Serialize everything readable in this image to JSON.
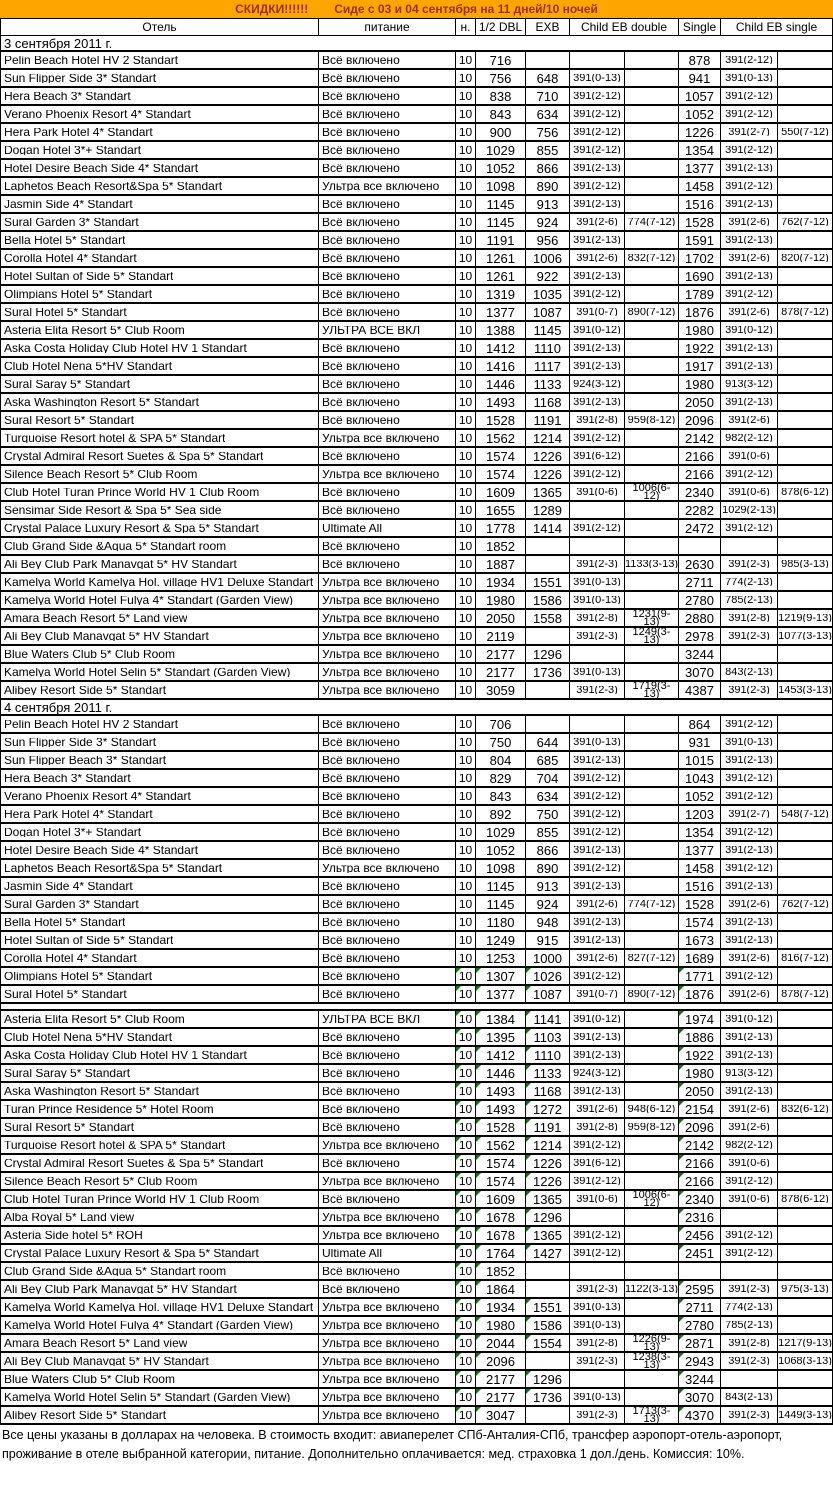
{
  "banner": {
    "discount": "СКИДКИ!!!!!!",
    "subtitle": "Сиде с 03 и 04 сентября на 11 дней/10 ночей"
  },
  "colors": {
    "banner_bg": "#FFA500",
    "banner_text": "#993300",
    "mark_green": "#007F00"
  },
  "columns": {
    "hotel": "Отель",
    "meal": "питание",
    "nights": "н.",
    "half_dbl": "1/2 DBL",
    "exb": "EXB",
    "child_eb_double": "Child EB double",
    "single": "Single",
    "child_eb_single": "Child EB single"
  },
  "sections": [
    {
      "title": "3 сентября 2011 г.",
      "rows": [
        [
          "Pelin Beach Hotel HV 2 Standart",
          "Всё включено",
          "10",
          "716",
          "",
          "",
          "",
          "878",
          "391(2-12)",
          ""
        ],
        [
          "Sun Flipper Side 3* Standart",
          "Всё включено",
          "10",
          "756",
          "648",
          "391(0-13)",
          "",
          "941",
          "391(0-13)",
          ""
        ],
        [
          "Hera Beach 3* Standart",
          "Всё включено",
          "10",
          "838",
          "710",
          "391(2-12)",
          "",
          "1057",
          "391(2-12)",
          ""
        ],
        [
          "Verano Phoenix Resort 4* Standart",
          "Всё включено",
          "10",
          "843",
          "634",
          "391(2-12)",
          "",
          "1052",
          "391(2-12)",
          ""
        ],
        [
          "Hera Park Hotel 4* Standart",
          "Всё включено",
          "10",
          "900",
          "756",
          "391(2-12)",
          "",
          "1226",
          "391(2-7)",
          "550(7-12)"
        ],
        [
          "Dogan Hotel 3*+ Standart",
          "Всё включено",
          "10",
          "1029",
          "855",
          "391(2-12)",
          "",
          "1354",
          "391(2-12)",
          ""
        ],
        [
          "Hotel Desire Beach Side 4* Standart",
          "Всё включено",
          "10",
          "1052",
          "866",
          "391(2-13)",
          "",
          "1377",
          "391(2-13)",
          ""
        ],
        [
          "Laphetos Beach Resort&Spa 5* Standart",
          "Ультра все включено",
          "10",
          "1098",
          "890",
          "391(2-12)",
          "",
          "1458",
          "391(2-12)",
          ""
        ],
        [
          "Jasmin Side 4* Standart",
          "Всё включено",
          "10",
          "1145",
          "913",
          "391(2-13)",
          "",
          "1516",
          "391(2-13)",
          ""
        ],
        [
          "Sural Garden 3* Standart",
          "Всё включено",
          "10",
          "1145",
          "924",
          "391(2-6)",
          "774(7-12)",
          "1528",
          "391(2-6)",
          "762(7-12)"
        ],
        [
          "Bella Hotel 5* Standart",
          "Всё включено",
          "10",
          "1191",
          "956",
          "391(2-13)",
          "",
          "1591",
          "391(2-13)",
          ""
        ],
        [
          "Corolla Hotel 4* Standart",
          "Всё включено",
          "10",
          "1261",
          "1006",
          "391(2-6)",
          "832(7-12)",
          "1702",
          "391(2-6)",
          "820(7-12)"
        ],
        [
          "Hotel Sultan of Side 5* Standart",
          "Всё включено",
          "10",
          "1261",
          "922",
          "391(2-13)",
          "",
          "1690",
          "391(2-13)",
          ""
        ],
        [
          "Olimpians Hotel 5* Standart",
          "Всё включено",
          "10",
          "1319",
          "1035",
          "391(2-12)",
          "",
          "1789",
          "391(2-12)",
          ""
        ],
        [
          "Sural Hotel 5* Standart",
          "Всё включено",
          "10",
          "1377",
          "1087",
          "391(0-7)",
          "890(7-12)",
          "1876",
          "391(2-6)",
          "878(7-12)"
        ],
        [
          "Asteria Elita Resort 5* Club Room",
          "УЛЬТРА ВСЕ ВКЛ",
          "10",
          "1388",
          "1145",
          "391(0-12)",
          "",
          "1980",
          "391(0-12)",
          ""
        ],
        [
          "Aska Costa Holiday Club Hotel HV 1 Standart",
          "Всё включено",
          "10",
          "1412",
          "1110",
          "391(2-13)",
          "",
          "1922",
          "391(2-13)",
          ""
        ],
        [
          "Club Hotel Nena 5*HV Standart",
          "Всё включено",
          "10",
          "1416",
          "1117",
          "391(2-13)",
          "",
          "1917",
          "391(2-13)",
          ""
        ],
        [
          "Sural Saray 5* Standart",
          "Всё включено",
          "10",
          "1446",
          "1133",
          "924(3-12)",
          "",
          "1980",
          "913(3-12)",
          ""
        ],
        [
          "Aska Washington Resort  5* Standart",
          "Всё включено",
          "10",
          "1493",
          "1168",
          "391(2-13)",
          "",
          "2050",
          "391(2-13)",
          ""
        ],
        [
          "Sural Resort 5* Standart",
          "Всё включено",
          "10",
          "1528",
          "1191",
          "391(2-8)",
          "959(8-12)",
          "2096",
          "391(2-6)",
          ""
        ],
        [
          "Turquoise Resort hotel & SPA 5* Standart",
          "Ультра все включено",
          "10",
          "1562",
          "1214",
          "391(2-12)",
          "",
          "2142",
          "982(2-12)",
          ""
        ],
        [
          "Crystal  Admiral Resort Suetes & Spa 5* Standart",
          "Всё включено",
          "10",
          "1574",
          "1226",
          "391(6-12)",
          "",
          "2166",
          "391(0-6)",
          ""
        ],
        [
          "Silence Beach Resort 5* Club Room",
          "Ультра все включено",
          "10",
          "1574",
          "1226",
          "391(2-12)",
          "",
          "2166",
          "391(2-12)",
          ""
        ],
        [
          "Club Hotel Turan Prince World HV 1 Club Room",
          "Всё включено",
          "10",
          "1609",
          "1365",
          "391(0-6)",
          "1006(6-12)",
          "2340",
          "391(0-6)",
          "878(6-12)"
        ],
        [
          "Sensimar Side Resort & Spa 5* Sea side",
          "Всё включено",
          "10",
          "1655",
          "1289",
          "",
          "",
          "2282",
          "1029(2-13)",
          ""
        ],
        [
          "Crystal Palace Luxury Resort & Spa 5* Standart",
          "Ultimate All",
          "10",
          "1778",
          "1414",
          "391(2-12)",
          "",
          "2472",
          "391(2-12)",
          ""
        ],
        [
          "Club Grand Side &Aqua 5* Standart room",
          "Всё включено",
          "10",
          "1852",
          "",
          "",
          "",
          "",
          "",
          ""
        ],
        [
          "Ali Bey Club Park Manavgat 5* HV Standart",
          "Всё включено",
          "10",
          "1887",
          "",
          "391(2-3)",
          "1133(3-13)",
          "2630",
          "391(2-3)",
          "985(3-13)"
        ],
        [
          "Kamelya World Kamelya Hol. village HV1 Deluxe Standart",
          "Ультра все включено",
          "10",
          "1934",
          "1551",
          "391(0-13)",
          "",
          "2711",
          "774(2-13)",
          ""
        ],
        [
          "Kamelya World Hotel Fulya 4* Standart (Garden View)",
          "Ультра все включено",
          "10",
          "1980",
          "1586",
          "391(0-13)",
          "",
          "2780",
          "785(2-13)",
          ""
        ],
        [
          "Amara Beach Resort 5* Land view",
          "Ультра все включено",
          "10",
          "2050",
          "1558",
          "391(2-8)",
          "1231(9-13)",
          "2880",
          "391(2-8)",
          "1219(9-13)"
        ],
        [
          "Ali Bey Club Manavgat 5* HV Standart",
          "Ультра все включено",
          "10",
          "2119",
          "",
          "391(2-3)",
          "1249(3-13)",
          "2978",
          "391(2-3)",
          "1077(3-13)"
        ],
        [
          "Blue Waters Club 5* Club Room",
          "Ультра все включено",
          "10",
          "2177",
          "1296",
          "",
          "",
          "3244",
          "",
          ""
        ],
        [
          "Kamelya World Hotel Selin 5* Standart (Garden View)",
          "Ультра все включено",
          "10",
          "2177",
          "1736",
          "391(0-13)",
          "",
          "3070",
          "843(2-13)",
          ""
        ],
        [
          "Alibey Resort Side 5* Standart",
          "Ультра все включено",
          "10",
          "3059",
          "",
          "391(2-3)",
          "1719(3-13)",
          "4387",
          "391(2-3)",
          "1453(3-13)"
        ]
      ]
    },
    {
      "title": "4 сентября 2011 г.",
      "rows": [
        [
          "Pelin Beach Hotel HV 2 Standart",
          "Всё включено",
          "10",
          "706",
          "",
          "",
          "",
          "864",
          "391(2-12)",
          ""
        ],
        [
          "Sun Flipper Side 3* Standart",
          "Всё включено",
          "10",
          "750",
          "644",
          "391(0-13)",
          "",
          "931",
          "391(0-13)",
          ""
        ],
        [
          "Sun Flipper Beach 3*  Standart",
          "Всё включено",
          "10",
          "804",
          "685",
          "391(2-13)",
          "",
          "1015",
          "391(2-13)",
          ""
        ],
        [
          "Hera Beach 3* Standart",
          "Всё включено",
          "10",
          "829",
          "704",
          "391(2-12)",
          "",
          "1043",
          "391(2-12)",
          ""
        ],
        [
          "Verano Phoenix Resort 4* Standart",
          "Всё включено",
          "10",
          "843",
          "634",
          "391(2-12)",
          "",
          "1052",
          "391(2-12)",
          ""
        ],
        [
          "Hera Park Hotel 4* Standart",
          "Всё включено",
          "10",
          "892",
          "750",
          "391(2-12)",
          "",
          "1203",
          "391(2-7)",
          "548(7-12)"
        ],
        [
          "Dogan Hotel 3*+ Standart",
          "Всё включено",
          "10",
          "1029",
          "855",
          "391(2-12)",
          "",
          "1354",
          "391(2-12)",
          ""
        ],
        [
          "Hotel Desire Beach Side 4* Standart",
          "Всё включено",
          "10",
          "1052",
          "866",
          "391(2-13)",
          "",
          "1377",
          "391(2-13)",
          ""
        ],
        [
          "Laphetos Beach Resort&Spa 5* Standart",
          "Ультра все включено",
          "10",
          "1098",
          "890",
          "391(2-12)",
          "",
          "1458",
          "391(2-12)",
          ""
        ],
        [
          "Jasmin Side 4* Standart",
          "Всё включено",
          "10",
          "1145",
          "913",
          "391(2-13)",
          "",
          "1516",
          "391(2-13)",
          ""
        ],
        [
          "Sural Garden 3* Standart",
          "Всё включено",
          "10",
          "1145",
          "924",
          "391(2-6)",
          "774(7-12)",
          "1528",
          "391(2-6)",
          "762(7-12)"
        ],
        [
          "Bella Hotel 5* Standart",
          "Всё включено",
          "10",
          "1180",
          "948",
          "391(2-13)",
          "",
          "1574",
          "391(2-13)",
          ""
        ],
        [
          "Hotel Sultan of Side 5* Standart",
          "Всё включено",
          "10",
          "1249",
          "915",
          "391(2-13)",
          "",
          "1673",
          "391(2-13)",
          ""
        ],
        [
          "Corolla Hotel 4* Standart",
          "Всё включено",
          "10",
          "1253",
          "1000",
          "391(2-6)",
          "827(7-12)",
          "1689",
          "391(2-6)",
          "816(7-12)"
        ],
        [
          "Olimpians Hotel 5* Standart",
          "Всё включено",
          "10",
          "1307",
          "1026",
          "391(2-12)",
          "",
          "1771",
          "391(2-12)",
          "",
          1
        ],
        [
          "Sural Hotel 5* Standart",
          "Всё включено",
          "10",
          "1377",
          "1087",
          "391(0-7)",
          "890(7-12)",
          "1876",
          "391(2-6)",
          "878(7-12)",
          1
        ],
        null,
        [
          "Asteria Elita Resort 5* Club Room",
          "УЛЬТРА ВСЕ ВКЛ",
          "10",
          "1384",
          "1141",
          "391(0-12)",
          "",
          "1974",
          "391(0-12)",
          "",
          1
        ],
        [
          "Club Hotel Nena 5*HV Standart",
          "Всё включено",
          "10",
          "1395",
          "1103",
          "391(2-13)",
          "",
          "1886",
          "391(2-13)",
          "",
          1
        ],
        [
          "Aska Costa Holiday Club Hotel HV 1 Standart",
          "Всё включено",
          "10",
          "1412",
          "1110",
          "391(2-13)",
          "",
          "1922",
          "391(2-13)",
          "",
          1
        ],
        [
          "Sural Saray 5* Standart",
          "Всё включено",
          "10",
          "1446",
          "1133",
          "924(3-12)",
          "",
          "1980",
          "913(3-12)",
          "",
          1
        ],
        [
          "Aska Washington Resort  5* Standart",
          "Всё включено",
          "10",
          "1493",
          "1168",
          "391(2-13)",
          "",
          "2050",
          "391(2-13)",
          "",
          1
        ],
        [
          "Turan Prince Residence 5* Hotel Room",
          "Всё включено",
          "10",
          "1493",
          "1272",
          "391(2-6)",
          "948(6-12)",
          "2154",
          "391(2-6)",
          "832(6-12)",
          1
        ],
        [
          "Sural Resort 5* Standart",
          "Всё включено",
          "10",
          "1528",
          "1191",
          "391(2-8)",
          "959(8-12)",
          "2096",
          "391(2-6)",
          "",
          1
        ],
        [
          "Turquoise Resort hotel & SPA 5* Standart",
          "Ультра все включено",
          "10",
          "1562",
          "1214",
          "391(2-12)",
          "",
          "2142",
          "982(2-12)",
          "",
          1
        ],
        [
          "Crystal  Admiral Resort Suetes & Spa 5* Standart",
          "Всё включено",
          "10",
          "1574",
          "1226",
          "391(6-12)",
          "",
          "2166",
          "391(0-6)",
          "",
          1
        ],
        [
          "Silence Beach Resort 5* Club Room",
          "Ультра все включено",
          "10",
          "1574",
          "1226",
          "391(2-12)",
          "",
          "2166",
          "391(2-12)",
          "",
          1
        ],
        [
          "Club Hotel Turan Prince World HV 1 Club Room",
          "Всё включено",
          "10",
          "1609",
          "1365",
          "391(0-6)",
          "1006(6-12)",
          "2340",
          "391(0-6)",
          "878(6-12)",
          1
        ],
        [
          "Alba Royal 5* Land view",
          "Ультра все включено",
          "10",
          "1678",
          "1296",
          "",
          "",
          "2316",
          "",
          "",
          1
        ],
        [
          "Asteria Side hotel 5* ROH",
          "Ультра все включено",
          "10",
          "1678",
          "1365",
          "391(2-12)",
          "",
          "2456",
          "391(2-12)",
          "",
          1
        ],
        [
          "Crystal Palace Luxury Resort & Spa 5* Standart",
          "Ultimate All",
          "10",
          "1764",
          "1427",
          "391(2-12)",
          "",
          "2451",
          "391(2-12)",
          "",
          1
        ],
        [
          "Club Grand Side &Aqua 5* Standart room",
          "Всё включено",
          "10",
          "1852",
          "",
          "",
          "",
          "",
          "",
          "",
          1
        ],
        [
          "Ali Bey Club Park Manavgat 5* HV Standart",
          "Всё включено",
          "10",
          "1864",
          "",
          "391(2-3)",
          "1122(3-13)",
          "2595",
          "391(2-3)",
          "975(3-13)",
          1
        ],
        [
          "Kamelya World Kamelya Hol. village HV1 Deluxe Standart",
          "Ультра все включено",
          "10",
          "1934",
          "1551",
          "391(0-13)",
          "",
          "2711",
          "774(2-13)",
          "",
          1
        ],
        [
          "Kamelya World Hotel Fulya 4* Standart (Garden View)",
          "Ультра все включено",
          "10",
          "1980",
          "1586",
          "391(0-13)",
          "",
          "2780",
          "785(2-13)",
          "",
          1
        ],
        [
          "Amara Beach Resort 5* Land view",
          "Ультра все включено",
          "10",
          "2044",
          "1554",
          "391(2-8)",
          "1226(9-13)",
          "2871",
          "391(2-8)",
          "1217(9-13)",
          1
        ],
        [
          "Ali Bey Club Manavgat 5* HV Standart",
          "Ультра все включено",
          "10",
          "2096",
          "",
          "391(2-3)",
          "1238(3-13)",
          "2943",
          "391(2-3)",
          "1068(3-13)",
          1
        ],
        [
          "Blue Waters Club 5* Club Room",
          "Ультра все включено",
          "10",
          "2177",
          "1296",
          "",
          "",
          "3244",
          "",
          "",
          1
        ],
        [
          "Kamelya World Hotel Selin 5* Standart (Garden View)",
          "Ультра все включено",
          "10",
          "2177",
          "1736",
          "391(0-13)",
          "",
          "3070",
          "843(2-13)",
          "",
          1
        ],
        [
          "Alibey Resort Side 5* Standart",
          "Ультра все включено",
          "10",
          "3047",
          "",
          "391(2-3)",
          "1713(3-13)",
          "4370",
          "391(2-3)",
          "1449(3-13)",
          1
        ]
      ]
    }
  ],
  "footer": "Все цены указаны в долларах на человека. В стоимость входит: авиаперелет СПб-Анталия-СПб, трансфер аэропорт-отель-аэропорт, проживание в отеле выбранной категории, питание. Дополнительно оплачивается: мед. страховка 1 дол./день. Комиссия: 10%."
}
